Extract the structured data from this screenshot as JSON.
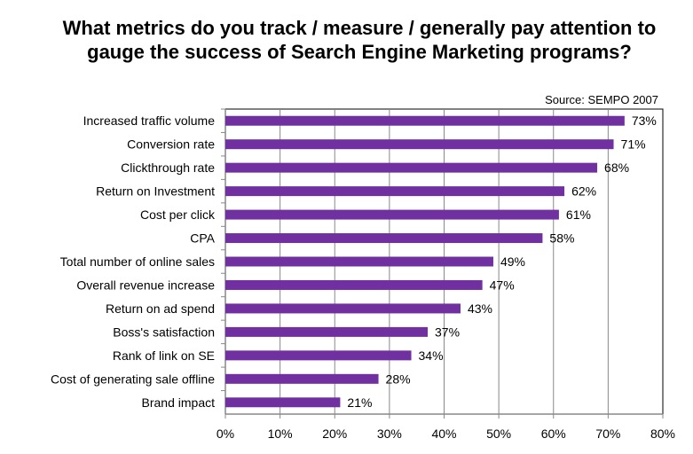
{
  "chart_data": {
    "type": "bar",
    "orientation": "horizontal",
    "title": "What metrics do you track / measure / generally pay attention to gauge the success of Search Engine Marketing programs?",
    "source": "Source: SEMPO 2007",
    "categories": [
      "Increased traffic volume",
      "Conversion rate",
      "Clickthrough rate",
      "Return on Investment",
      "Cost per click",
      "CPA",
      "Total number of online sales",
      "Overall revenue increase",
      "Return on ad spend",
      "Boss's satisfaction",
      "Rank of link on SE",
      "Cost of generating sale offline",
      "Brand impact"
    ],
    "values": [
      73,
      71,
      68,
      62,
      61,
      58,
      49,
      47,
      43,
      37,
      34,
      28,
      21
    ],
    "data_labels": [
      "73%",
      "71%",
      "68%",
      "62%",
      "61%",
      "58%",
      "49%",
      "47%",
      "43%",
      "37%",
      "34%",
      "28%",
      "21%"
    ],
    "xlim": [
      0,
      80
    ],
    "xticks": [
      0,
      10,
      20,
      30,
      40,
      50,
      60,
      70,
      80
    ],
    "xtick_labels": [
      "0%",
      "10%",
      "20%",
      "30%",
      "40%",
      "50%",
      "60%",
      "70%",
      "80%"
    ],
    "grid": true,
    "bar_color": "#7030A0"
  }
}
